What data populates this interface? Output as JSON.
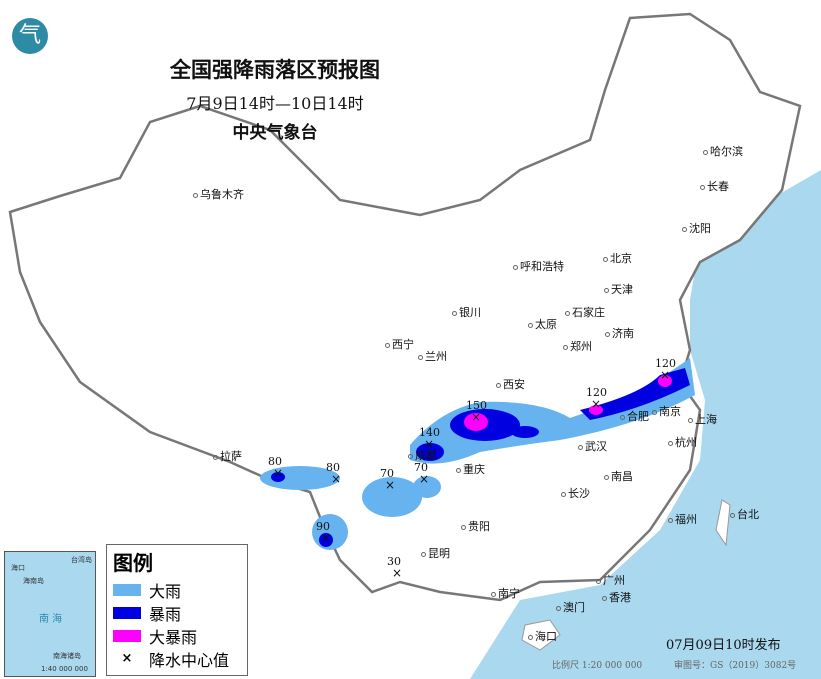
{
  "header": {
    "title": "全国强降雨落区预报图",
    "period": "7月9日14时—10日14时",
    "issuer": "中央气象台",
    "logo_text": "气"
  },
  "colors": {
    "heavy_rain": "#66b3f0",
    "rainstorm": "#0000e0",
    "heavy_rainstorm": "#ff00ff",
    "sea": "#a9d8ef"
  },
  "cities": [
    "乌鲁木齐",
    "哈尔滨",
    "长春",
    "沈阳",
    "呼和浩特",
    "北京",
    "天津",
    "石家庄",
    "太原",
    "济南",
    "银川",
    "西宁",
    "兰州",
    "郑州",
    "西安",
    "合肥",
    "南京",
    "上海",
    "杭州",
    "武汉",
    "重庆",
    "成都",
    "拉萨",
    "南昌",
    "长沙",
    "贵阳",
    "昆明",
    "福州",
    "台北",
    "南宁",
    "广州",
    "澳门",
    "香港",
    "海口"
  ],
  "rain_centers": [
    "80",
    "80",
    "70",
    "70",
    "140",
    "150",
    "120",
    "120",
    "90",
    "30"
  ],
  "legend": {
    "title": "图例",
    "items": [
      {
        "label": "大雨",
        "color": "#66b3f0"
      },
      {
        "label": "暴雨",
        "color": "#0000e0"
      },
      {
        "label": "大暴雨",
        "color": "#ff00ff"
      },
      {
        "label": "降水中心值",
        "symbol": "×"
      }
    ]
  },
  "inset": {
    "sea_label": "南 海",
    "labels": [
      "海口",
      "海南岛",
      "台湾岛",
      "南海诸岛"
    ],
    "scale": "1:40 000 000"
  },
  "footer": {
    "published": "07月09日10时发布",
    "scale": "比例尺 1:20 000 000",
    "approval": "审图号：GS（2019）3082号"
  }
}
